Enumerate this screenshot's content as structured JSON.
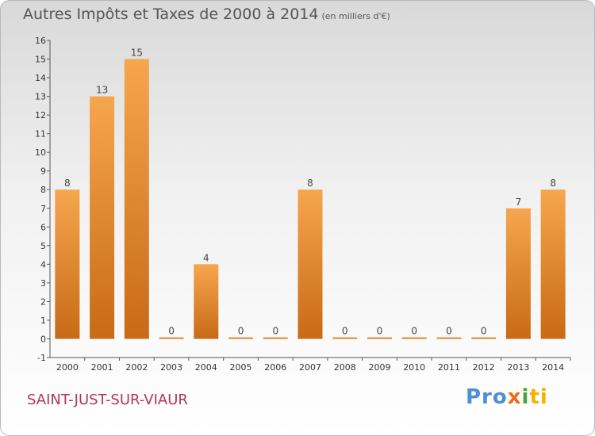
{
  "header": {
    "title": "Autres Impôts et Taxes de 2000 à 2014",
    "unit": "(en milliers d'€)"
  },
  "footer": {
    "commune": "SAINT-JUST-SUR-VIAUR",
    "logo_parts": [
      "Pro",
      "x",
      "i",
      "ti"
    ]
  },
  "colors": {
    "bar_light": "#f6a64e",
    "bar_dark": "#c86a16",
    "commune_text": "#b0365c"
  },
  "chart_data": {
    "type": "bar",
    "title": "Autres Impôts et Taxes de 2000 à 2014",
    "subtitle": "(en milliers d'€)",
    "xlabel": "",
    "ylabel": "",
    "categories": [
      "2000",
      "2001",
      "2002",
      "2003",
      "2004",
      "2005",
      "2006",
      "2007",
      "2008",
      "2009",
      "2010",
      "2011",
      "2012",
      "2013",
      "2014"
    ],
    "values": [
      8,
      13,
      15,
      0,
      4,
      0,
      0,
      8,
      0,
      0,
      0,
      0,
      0,
      7,
      8
    ],
    "ylim": [
      -1,
      16
    ],
    "yticks": [
      -1,
      0,
      1,
      2,
      3,
      4,
      5,
      6,
      7,
      8,
      9,
      10,
      11,
      12,
      13,
      14,
      15,
      16
    ],
    "grid": false,
    "legend": "none"
  }
}
